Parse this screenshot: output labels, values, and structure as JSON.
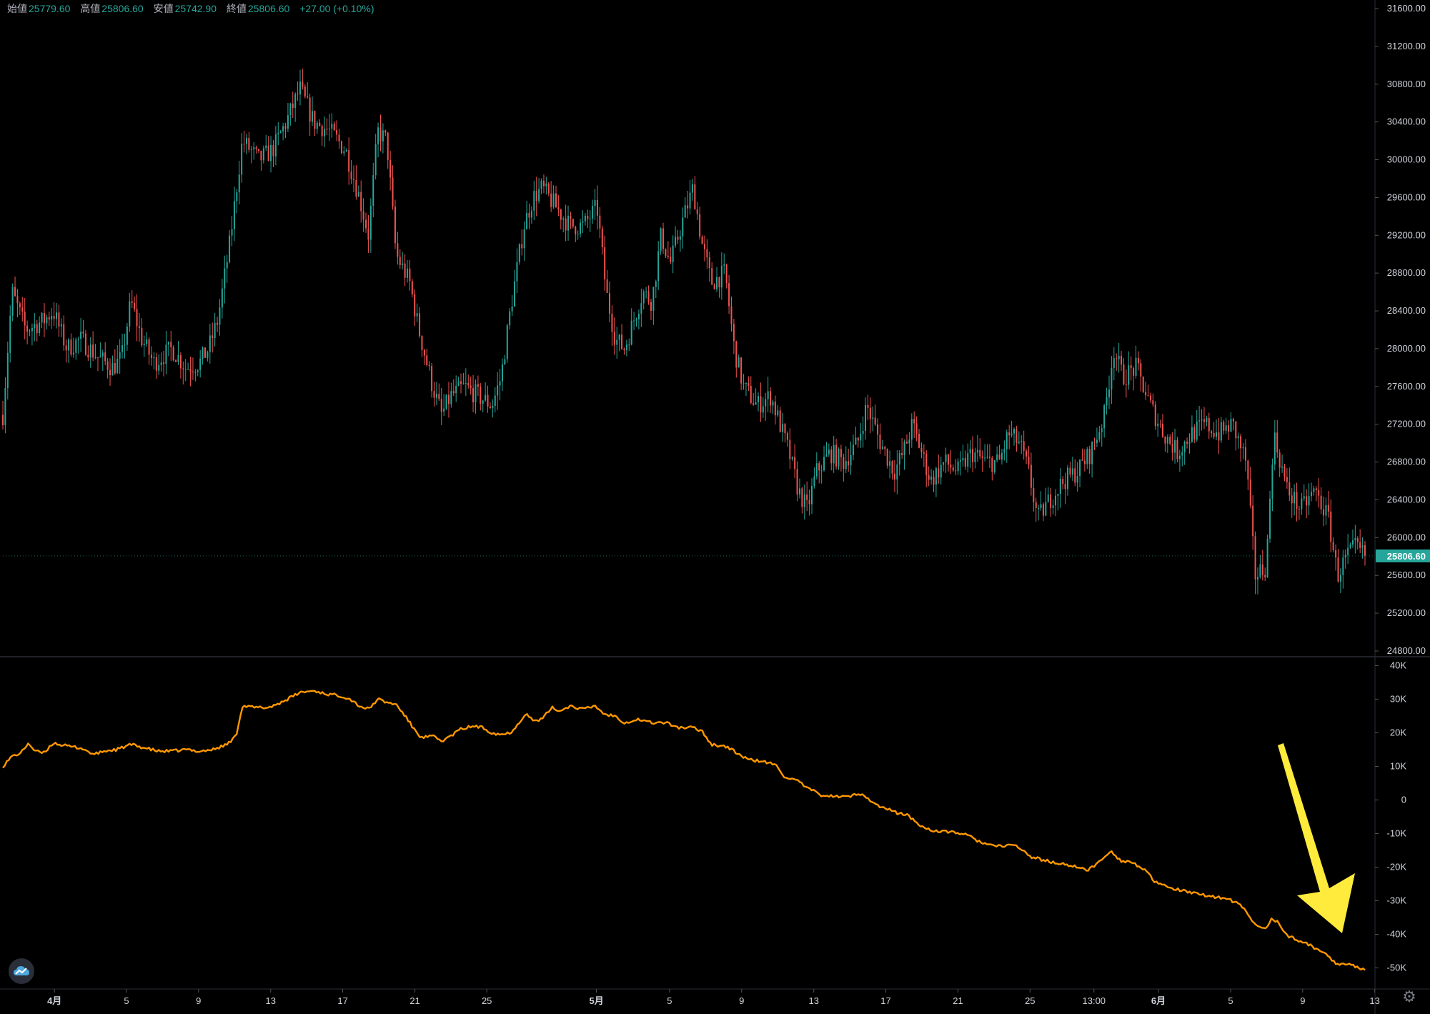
{
  "header": {
    "open_label": "始値",
    "open": "25779.60",
    "high_label": "高値",
    "high": "25806.60",
    "low_label": "安値",
    "low": "25742.90",
    "close_label": "終値",
    "close": "25806.60",
    "change": "+27.00 (+0.10%)"
  },
  "colors": {
    "up": "#26a69a",
    "down": "#ef5350",
    "indicator": "#ff9800",
    "arrow": "#ffeb3b",
    "background": "#000000"
  },
  "icons": {
    "logo": "tradingview-cloud-icon",
    "settings": "gear-icon"
  },
  "chart_data": [
    {
      "type": "candlestick",
      "title": "",
      "price_axis": {
        "ylim": [
          24800,
          31600
        ],
        "ticks": [
          "31600.00",
          "31200.00",
          "30800.00",
          "30400.00",
          "30000.00",
          "29600.00",
          "29200.00",
          "28800.00",
          "28400.00",
          "28000.00",
          "27600.00",
          "27200.00",
          "26800.00",
          "26400.00",
          "26000.00",
          "25600.00",
          "25200.00",
          "24800.00"
        ]
      },
      "last_price_tag": "25806.60",
      "approx_close_path": [
        [
          0,
          27300
        ],
        [
          10,
          28600
        ],
        [
          25,
          28200
        ],
        [
          45,
          28300
        ],
        [
          55,
          28400
        ],
        [
          70,
          28000
        ],
        [
          85,
          28100
        ],
        [
          105,
          27900
        ],
        [
          120,
          27800
        ],
        [
          130,
          27900
        ],
        [
          140,
          28500
        ],
        [
          152,
          28100
        ],
        [
          165,
          27850
        ],
        [
          185,
          28000
        ],
        [
          200,
          27800
        ],
        [
          215,
          27850
        ],
        [
          225,
          28000
        ],
        [
          235,
          28300
        ],
        [
          248,
          29100
        ],
        [
          262,
          30200
        ],
        [
          280,
          30000
        ],
        [
          295,
          30100
        ],
        [
          310,
          30400
        ],
        [
          325,
          30750
        ],
        [
          340,
          30400
        ],
        [
          358,
          30300
        ],
        [
          375,
          30100
        ],
        [
          390,
          29600
        ],
        [
          400,
          29200
        ],
        [
          410,
          30300
        ],
        [
          420,
          30200
        ],
        [
          430,
          29000
        ],
        [
          445,
          28700
        ],
        [
          455,
          28200
        ],
        [
          470,
          27600
        ],
        [
          480,
          27300
        ],
        [
          490,
          27500
        ],
        [
          505,
          27600
        ],
        [
          520,
          27500
        ],
        [
          535,
          27400
        ],
        [
          545,
          27700
        ],
        [
          555,
          28400
        ],
        [
          570,
          29300
        ],
        [
          580,
          29600
        ],
        [
          590,
          29700
        ],
        [
          605,
          29500
        ],
        [
          620,
          29300
        ],
        [
          635,
          29300
        ],
        [
          650,
          29500
        ],
        [
          660,
          28600
        ],
        [
          670,
          28100
        ],
        [
          680,
          28000
        ],
        [
          690,
          28300
        ],
        [
          700,
          28600
        ],
        [
          710,
          28500
        ],
        [
          720,
          29200
        ],
        [
          730,
          28900
        ],
        [
          745,
          29400
        ],
        [
          755,
          29700
        ],
        [
          765,
          29100
        ],
        [
          775,
          28700
        ],
        [
          790,
          28800
        ],
        [
          800,
          28000
        ],
        [
          810,
          27600
        ],
        [
          825,
          27400
        ],
        [
          840,
          27500
        ],
        [
          850,
          27200
        ],
        [
          860,
          26900
        ],
        [
          870,
          26500
        ],
        [
          880,
          26300
        ],
        [
          890,
          26700
        ],
        [
          905,
          26900
        ],
        [
          920,
          26800
        ],
        [
          935,
          27000
        ],
        [
          945,
          27400
        ],
        [
          960,
          27000
        ],
        [
          975,
          26700
        ],
        [
          985,
          26900
        ],
        [
          995,
          27200
        ],
        [
          1005,
          26900
        ],
        [
          1015,
          26600
        ],
        [
          1030,
          26800
        ],
        [
          1045,
          26700
        ],
        [
          1060,
          26900
        ],
        [
          1075,
          26800
        ],
        [
          1090,
          26800
        ],
        [
          1100,
          27100
        ],
        [
          1112,
          27000
        ],
        [
          1122,
          26700
        ],
        [
          1132,
          26200
        ],
        [
          1145,
          26400
        ],
        [
          1160,
          26600
        ],
        [
          1175,
          26700
        ],
        [
          1190,
          26900
        ],
        [
          1205,
          27300
        ],
        [
          1215,
          28000
        ],
        [
          1225,
          27700
        ],
        [
          1240,
          27800
        ],
        [
          1255,
          27400
        ],
        [
          1270,
          27100
        ],
        [
          1285,
          26900
        ],
        [
          1300,
          27100
        ],
        [
          1315,
          27200
        ],
        [
          1330,
          27100
        ],
        [
          1345,
          27200
        ],
        [
          1360,
          26800
        ],
        [
          1370,
          25600
        ],
        [
          1382,
          25700
        ],
        [
          1390,
          27100
        ],
        [
          1405,
          26500
        ],
        [
          1420,
          26300
        ],
        [
          1435,
          26500
        ],
        [
          1450,
          26200
        ],
        [
          1460,
          25600
        ],
        [
          1470,
          25800
        ],
        [
          1480,
          25900
        ],
        [
          1490,
          25806
        ]
      ]
    },
    {
      "type": "line",
      "title": "",
      "series": [
        {
          "name": "",
          "color": "#ff9800"
        }
      ],
      "value_axis": {
        "ylim": [
          -55000,
          42000
        ],
        "ticks": [
          "40K",
          "30K",
          "20K",
          "10K",
          "0",
          "-10K",
          "-20K",
          "-30K",
          "-40K",
          "-50K"
        ]
      },
      "approx_path": [
        [
          0,
          10000
        ],
        [
          10,
          13000
        ],
        [
          20,
          14000
        ],
        [
          28,
          17000
        ],
        [
          35,
          14500
        ],
        [
          45,
          14000
        ],
        [
          55,
          17000
        ],
        [
          70,
          16000
        ],
        [
          85,
          15500
        ],
        [
          100,
          13500
        ],
        [
          110,
          14500
        ],
        [
          125,
          15000
        ],
        [
          140,
          16500
        ],
        [
          155,
          15500
        ],
        [
          170,
          14500
        ],
        [
          185,
          14500
        ],
        [
          200,
          15000
        ],
        [
          215,
          14500
        ],
        [
          230,
          15000
        ],
        [
          245,
          16500
        ],
        [
          255,
          19000
        ],
        [
          262,
          28000
        ],
        [
          275,
          27500
        ],
        [
          290,
          27500
        ],
        [
          300,
          28500
        ],
        [
          315,
          30500
        ],
        [
          325,
          32000
        ],
        [
          340,
          32500
        ],
        [
          355,
          31500
        ],
        [
          370,
          31000
        ],
        [
          380,
          30000
        ],
        [
          390,
          28000
        ],
        [
          400,
          27000
        ],
        [
          410,
          30000
        ],
        [
          420,
          29000
        ],
        [
          430,
          28500
        ],
        [
          440,
          25000
        ],
        [
          450,
          21000
        ],
        [
          458,
          18500
        ],
        [
          470,
          19000
        ],
        [
          480,
          17500
        ],
        [
          490,
          19000
        ],
        [
          500,
          21000
        ],
        [
          515,
          22000
        ],
        [
          525,
          21500
        ],
        [
          535,
          20000
        ],
        [
          545,
          19500
        ],
        [
          555,
          20000
        ],
        [
          565,
          23000
        ],
        [
          572,
          26000
        ],
        [
          580,
          23500
        ],
        [
          590,
          24000
        ],
        [
          600,
          27500
        ],
        [
          610,
          26500
        ],
        [
          620,
          28000
        ],
        [
          635,
          27000
        ],
        [
          648,
          28000
        ],
        [
          658,
          25500
        ],
        [
          670,
          25000
        ],
        [
          680,
          23000
        ],
        [
          695,
          24000
        ],
        [
          710,
          23000
        ],
        [
          725,
          23000
        ],
        [
          740,
          21500
        ],
        [
          755,
          21500
        ],
        [
          765,
          20500
        ],
        [
          775,
          16500
        ],
        [
          790,
          16000
        ],
        [
          800,
          14500
        ],
        [
          815,
          12000
        ],
        [
          830,
          11500
        ],
        [
          845,
          10500
        ],
        [
          855,
          7000
        ],
        [
          870,
          5500
        ],
        [
          880,
          3500
        ],
        [
          895,
          1500
        ],
        [
          910,
          1000
        ],
        [
          925,
          1000
        ],
        [
          940,
          2000
        ],
        [
          955,
          -1500
        ],
        [
          970,
          -3000
        ],
        [
          980,
          -4000
        ],
        [
          990,
          -4500
        ],
        [
          1000,
          -7000
        ],
        [
          1010,
          -8500
        ],
        [
          1025,
          -9500
        ],
        [
          1040,
          -9500
        ],
        [
          1055,
          -10500
        ],
        [
          1065,
          -12000
        ],
        [
          1080,
          -13500
        ],
        [
          1095,
          -14000
        ],
        [
          1105,
          -13000
        ],
        [
          1115,
          -15000
        ],
        [
          1125,
          -17000
        ],
        [
          1140,
          -18000
        ],
        [
          1155,
          -19000
        ],
        [
          1170,
          -19500
        ],
        [
          1185,
          -21000
        ],
        [
          1195,
          -19500
        ],
        [
          1205,
          -17000
        ],
        [
          1212,
          -15000
        ],
        [
          1222,
          -18000
        ],
        [
          1235,
          -18500
        ],
        [
          1250,
          -21000
        ],
        [
          1260,
          -24500
        ],
        [
          1275,
          -26000
        ],
        [
          1290,
          -27000
        ],
        [
          1305,
          -28000
        ],
        [
          1320,
          -28500
        ],
        [
          1340,
          -29500
        ],
        [
          1355,
          -31500
        ],
        [
          1365,
          -35500
        ],
        [
          1375,
          -38000
        ],
        [
          1382,
          -38500
        ],
        [
          1388,
          -35000
        ],
        [
          1395,
          -36500
        ],
        [
          1405,
          -40500
        ],
        [
          1420,
          -42000
        ],
        [
          1435,
          -44000
        ],
        [
          1448,
          -46000
        ],
        [
          1458,
          -48500
        ],
        [
          1470,
          -49000
        ],
        [
          1480,
          -49500
        ],
        [
          1490,
          -50500
        ]
      ]
    }
  ],
  "x_axis": {
    "ticks": [
      {
        "label": "4月",
        "pos": 0.0376,
        "bold": true
      },
      {
        "label": "5",
        "pos": 0.0901
      },
      {
        "label": "9",
        "pos": 0.1426
      },
      {
        "label": "13",
        "pos": 0.1952
      },
      {
        "label": "17",
        "pos": 0.2477
      },
      {
        "label": "21",
        "pos": 0.3003
      },
      {
        "label": "25",
        "pos": 0.3527
      },
      {
        "label": "5月",
        "pos": 0.4326,
        "bold": true
      },
      {
        "label": "5",
        "pos": 0.4859
      },
      {
        "label": "9",
        "pos": 0.5384
      },
      {
        "label": "13",
        "pos": 0.591
      },
      {
        "label": "17",
        "pos": 0.6435
      },
      {
        "label": "21",
        "pos": 0.6961
      },
      {
        "label": "25",
        "pos": 0.7486
      },
      {
        "label": "13:00",
        "pos": 0.7952
      },
      {
        "label": "6月",
        "pos": 0.8422,
        "bold": true
      },
      {
        "label": "5",
        "pos": 0.8948
      },
      {
        "label": "9",
        "pos": 0.9473
      },
      {
        "label": "13",
        "pos": 0.9998
      }
    ]
  }
}
